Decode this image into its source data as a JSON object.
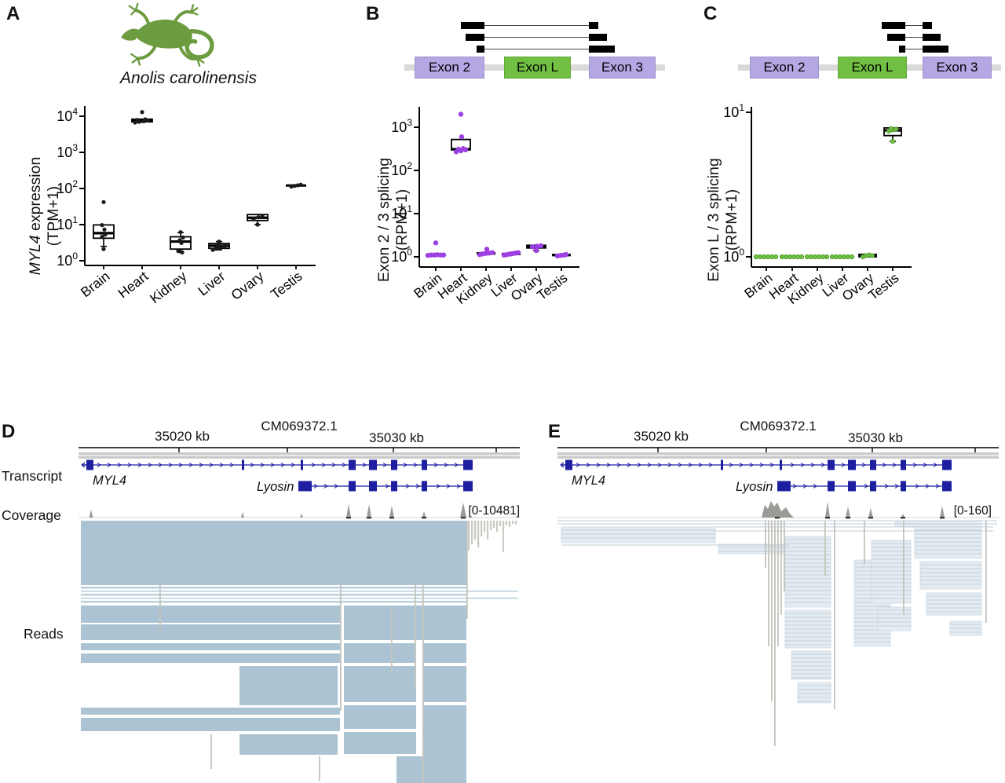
{
  "panels": {
    "a": "A",
    "b": "B",
    "c": "C",
    "d": "D",
    "e": "E"
  },
  "panel_a": {
    "species": "Anolis carolinensis"
  },
  "colors": {
    "exon_purple": "#b5a6e4",
    "exon_green": "#72c043",
    "point_purple": "#9c3fe3",
    "point_green": "#6fbf44",
    "lizard_green": "#6d9b3f",
    "read_blue": "#abc3d3",
    "transcript_navy": "#1e1fa0",
    "coverage_gray": "#9a9a96"
  },
  "splice_diagrams": {
    "b": {
      "exons": [
        "Exon 2",
        "Exon L",
        "Exon 3"
      ],
      "junction": "Exon 2 to Exon 3 junction reads"
    },
    "c": {
      "exons": [
        "Exon 2",
        "Exon L",
        "Exon 3"
      ],
      "junction": "Exon L to Exon 3 junction reads"
    }
  },
  "chart_data": [
    {
      "type": "boxplot",
      "panel": "A",
      "scale": "log10",
      "ylabel": "MYL4 expression (TPM+1)",
      "ylabel_line1_italic": "MYL4",
      "ylabel_line1_rest": " expression",
      "ylabel_line2": "(TPM+1)",
      "ylim": [
        1,
        20000
      ],
      "ticks": [
        0,
        1,
        2,
        3,
        4
      ],
      "categories": [
        "Brain",
        "Heart",
        "Kidney",
        "Liver",
        "Ovary",
        "Testis"
      ],
      "stats": [
        {
          "lo": 2.5,
          "q1": 4.2,
          "med": 5.8,
          "q3": 9.8,
          "hi": 9.8
        },
        {
          "lo": 6800,
          "q1": 7000,
          "med": 7600,
          "q3": 8300,
          "hi": 8300
        },
        {
          "lo": 1.7,
          "q1": 2.1,
          "med": 3.4,
          "q3": 4.6,
          "hi": 6.0
        },
        {
          "lo": 2.0,
          "q1": 2.2,
          "med": 2.6,
          "q3": 3.0,
          "hi": 3.4
        },
        {
          "lo": 10,
          "q1": 13,
          "med": 15.5,
          "q3": 19,
          "hi": 19
        },
        {
          "lo": 115,
          "q1": 117,
          "med": 121,
          "q3": 126,
          "hi": 126
        }
      ],
      "points": [
        [
          2.1,
          4.6,
          5.3,
          7.3,
          9.7,
          42
        ],
        [
          6700,
          7000,
          7300,
          7600,
          7900,
          8200,
          13000
        ],
        [
          1.7,
          1.85,
          3.1,
          3.7,
          4.4,
          6.2
        ],
        [
          2.0,
          2.15,
          2.3,
          2.45,
          2.6,
          2.8,
          3.4
        ],
        [
          10,
          14,
          16,
          17.5
        ],
        [
          113,
          118,
          122,
          127
        ]
      ],
      "point_dx": [
        [
          0,
          -2,
          2,
          1,
          -2,
          0
        ],
        [
          -9,
          -4,
          2,
          7,
          -6,
          4,
          0
        ],
        [
          2,
          -3,
          1,
          -1,
          3,
          0
        ],
        [
          -8,
          -4,
          0,
          4,
          8,
          -2,
          0
        ],
        [
          0,
          -5,
          1,
          6
        ],
        [
          -6,
          -2,
          2,
          6
        ]
      ],
      "point_color": "#1a1a1a"
    },
    {
      "type": "boxplot",
      "panel": "B",
      "scale": "log10",
      "ylabel": "Exon 2 / 3 splicing (RPM+1)",
      "ylabel_line1_italic": "",
      "ylabel_line1_rest": "Exon 2 / 3 splicing",
      "ylabel_line2": "(RPM+1)",
      "ylim": [
        1,
        2500
      ],
      "ticks": [
        0,
        1,
        2,
        3
      ],
      "categories": [
        "Brain",
        "Heart",
        "Kidney",
        "Liver",
        "Ovary",
        "Testis"
      ],
      "stats": [
        {
          "lo": 1.07,
          "q1": 1.07,
          "med": 1.1,
          "q3": 1.14,
          "hi": 1.14
        },
        {
          "lo": 290,
          "q1": 300,
          "med": 310,
          "q3": 520,
          "hi": 520
        },
        {
          "lo": 1.15,
          "q1": 1.15,
          "med": 1.2,
          "q3": 1.27,
          "hi": 1.27
        },
        {
          "lo": 1.1,
          "q1": 1.1,
          "med": 1.16,
          "q3": 1.22,
          "hi": 1.22
        },
        {
          "lo": 1.38,
          "q1": 1.6,
          "med": 1.72,
          "q3": 1.85,
          "hi": 1.85
        },
        {
          "lo": 1.05,
          "q1": 1.05,
          "med": 1.1,
          "q3": 1.15,
          "hi": 1.15
        }
      ],
      "points": [
        [
          1.08,
          1.1,
          1.1,
          1.12,
          1.1,
          1.1,
          2.1
        ],
        [
          270,
          285,
          300,
          310,
          320,
          600,
          2000
        ],
        [
          1.12,
          1.17,
          1.2,
          1.22,
          1.25,
          1.5
        ],
        [
          1.1,
          1.12,
          1.15,
          1.17,
          1.2,
          1.22,
          1.25
        ],
        [
          1.4,
          1.7,
          1.75,
          1.8
        ],
        [
          1.05,
          1.08,
          1.1,
          1.13
        ]
      ],
      "point_dx": [
        [
          -10,
          -6,
          -2,
          2,
          6,
          10,
          0
        ],
        [
          -6,
          0,
          6,
          -3,
          3,
          1,
          0
        ],
        [
          -8,
          -4,
          0,
          4,
          8,
          1
        ],
        [
          -9,
          -6,
          -3,
          0,
          3,
          6,
          9
        ],
        [
          0,
          -5,
          1,
          6
        ],
        [
          -5,
          -1,
          3,
          6
        ]
      ],
      "point_color": "#9c3fe3"
    },
    {
      "type": "boxplot",
      "panel": "C",
      "scale": "log10",
      "ylabel": "Exon L / 3 splicing (RPM+1)",
      "ylabel_line1_italic": "",
      "ylabel_line1_rest": "Exon L / 3 splicing",
      "ylabel_line2": "(RPM+1)",
      "ylim": [
        1,
        11
      ],
      "ticks": [
        0,
        1
      ],
      "categories": [
        "Brain",
        "Heart",
        "Kidney",
        "Liver",
        "Ovary",
        "Testis"
      ],
      "stats": [
        null,
        null,
        null,
        null,
        {
          "lo": 1.0,
          "q1": 1.0,
          "med": 1.02,
          "q3": 1.04,
          "hi": 1.04
        },
        {
          "lo": 6.3,
          "q1": 6.9,
          "med": 7.5,
          "q3": 7.8,
          "hi": 7.8
        }
      ],
      "points": [
        [
          1.0,
          1.0,
          1.0,
          1.0,
          1.0,
          1.0
        ],
        [
          1.0,
          1.0,
          1.0,
          1.0,
          1.0,
          1.0
        ],
        [
          1.0,
          1.0,
          1.0,
          1.0,
          1.0,
          1.0
        ],
        [
          1.0,
          1.0,
          1.0,
          1.0,
          1.0,
          1.0
        ],
        [
          1.0,
          1.02,
          1.03,
          1.02
        ],
        [
          7.4,
          7.55,
          7.65,
          7.7,
          6.3
        ]
      ],
      "point_dx": [
        [
          -13,
          -8,
          -3,
          2,
          7,
          12
        ],
        [
          -13,
          -8,
          -3,
          2,
          7,
          12
        ],
        [
          -13,
          -8,
          -3,
          2,
          7,
          12
        ],
        [
          -13,
          -8,
          -3,
          2,
          7,
          12
        ],
        [
          -6,
          -2,
          2,
          6
        ],
        [
          -5,
          0,
          4,
          -2,
          0
        ]
      ],
      "point_color": "#6fbf44"
    }
  ],
  "browser": {
    "ruler": {
      "left": "35020 kb",
      "center": "CM069372.1",
      "right": "35030 kb"
    },
    "track_labels": {
      "transcript": "Transcript",
      "coverage": "Coverage",
      "reads": "Reads"
    },
    "gene_labels": {
      "gene1": "MYL4",
      "gene2": "Lyosin"
    },
    "d": {
      "range_label": "[0-10481]"
    },
    "e": {
      "range_label": "[0-160]"
    }
  }
}
